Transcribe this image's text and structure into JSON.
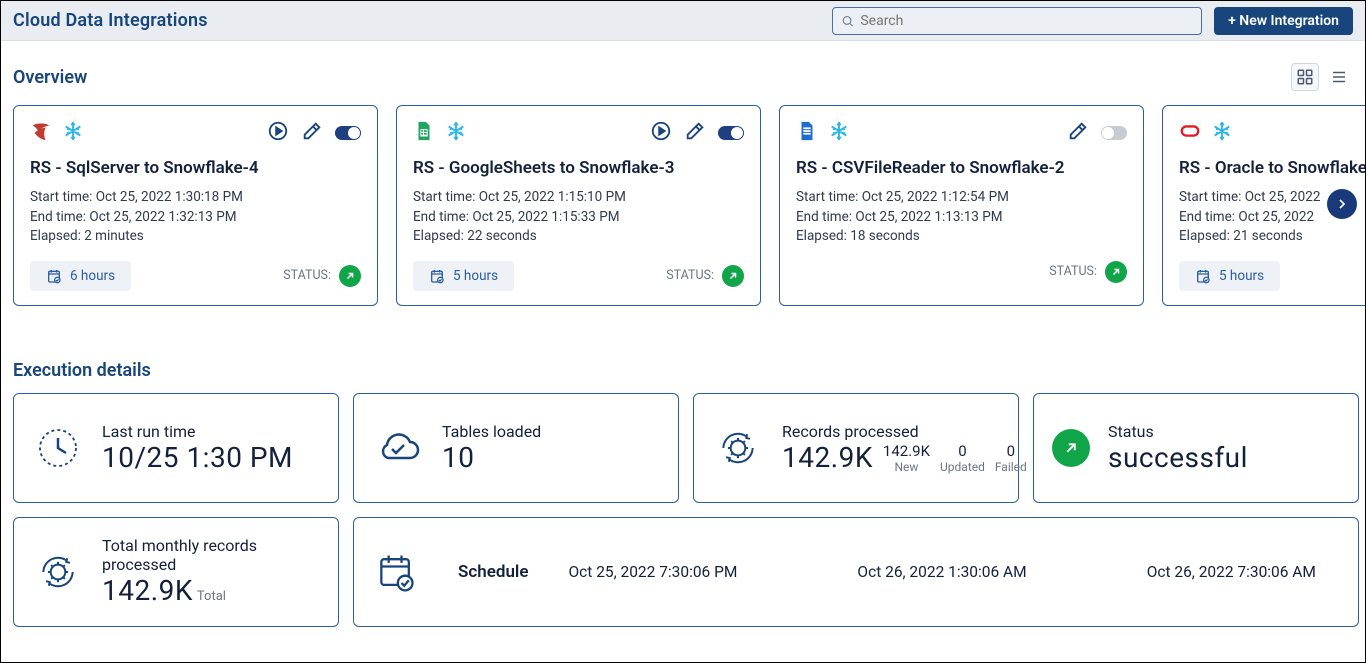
{
  "header": {
    "title": "Cloud Data Integrations",
    "search_placeholder": "Search",
    "new_button": "+ New Integration"
  },
  "overview_title": "Overview",
  "cards": [
    {
      "title": "RS - SqlServer to Snowflake-4",
      "start": "Start time: Oct 25, 2022 1:30:18 PM",
      "end": "End time: Oct 25, 2022 1:32:13 PM",
      "elapsed": "Elapsed: 2 minutes",
      "chip": "6 hours",
      "status_label": "STATUS:",
      "toggle_on": true,
      "show_play": true,
      "src": "sqlserver"
    },
    {
      "title": "RS - GoogleSheets to Snowflake-3",
      "start": "Start time: Oct 25, 2022 1:15:10 PM",
      "end": "End time: Oct 25, 2022 1:15:33 PM",
      "elapsed": "Elapsed: 22 seconds",
      "chip": "5 hours",
      "status_label": "STATUS:",
      "toggle_on": true,
      "show_play": true,
      "src": "gsheets"
    },
    {
      "title": "RS - CSVFileReader to Snowflake-2",
      "start": "Start time: Oct 25, 2022 1:12:54 PM",
      "end": "End time: Oct 25, 2022 1:13:13 PM",
      "elapsed": "Elapsed: 18 seconds",
      "chip": "",
      "status_label": "STATUS:",
      "toggle_on": false,
      "show_play": false,
      "src": "csv"
    },
    {
      "title": "RS - Oracle to Snowflake",
      "start": "Start time: Oct 25, 2022",
      "end": "End time: Oct 25, 2022",
      "elapsed": "Elapsed: 21 seconds",
      "chip": "5 hours",
      "status_label": "",
      "toggle_on": true,
      "show_play": true,
      "src": "oracle"
    }
  ],
  "exec_title": "Execution details",
  "lastrun": {
    "label": "Last run time",
    "value": "10/25 1:30 PM"
  },
  "tables": {
    "label": "Tables loaded",
    "value": "10"
  },
  "records": {
    "label": "Records processed",
    "value": "142.9K",
    "new_n": "142.9K",
    "new_l": "New",
    "upd_n": "0",
    "upd_l": "Updated",
    "fail_n": "0",
    "fail_l": "Failed"
  },
  "status": {
    "label": "Status",
    "value": "successful"
  },
  "monthly": {
    "label": "Total monthly records processed",
    "value": "142.9K",
    "sub": "Total"
  },
  "schedule": {
    "label": "Schedule",
    "times": [
      "Oct 25, 2022 7:30:06 PM",
      "Oct 26, 2022 1:30:06 AM",
      "Oct 26, 2022 7:30:06 AM"
    ]
  },
  "colors": {
    "primary": "#17457c",
    "border": "#2b5ea4",
    "success": "#11a54a"
  }
}
